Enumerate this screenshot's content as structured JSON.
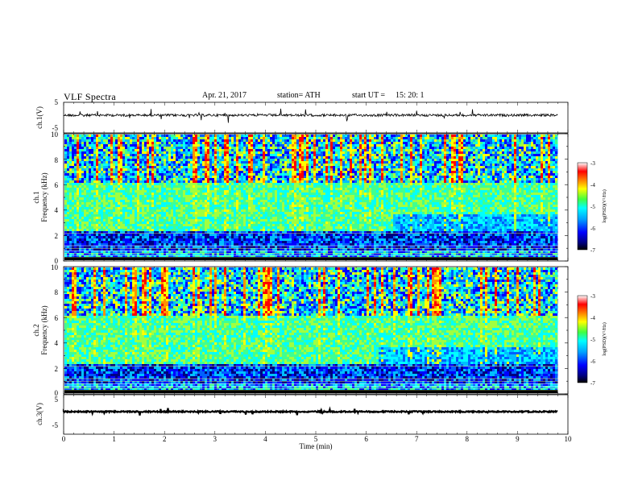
{
  "header": {
    "title": "VLF  Spectra",
    "date": "Apr. 21, 2017",
    "station": "station= ATH",
    "start_label": "start  UT  =",
    "start_time": "15: 20: 1"
  },
  "chart_data": [
    {
      "type": "line",
      "title": "",
      "ylabel": "ch.1(V)",
      "xlim": [
        0,
        10
      ],
      "ylim": [
        -5,
        5
      ],
      "yticks": [
        5,
        -5
      ],
      "description_level_V": 0,
      "series": [
        {
          "x": [
            0,
            9.8
          ],
          "y": [
            0,
            0
          ]
        }
      ]
    },
    {
      "type": "heatmap",
      "ylabel": "ch.1\nFrequency  (kHz)",
      "xlim": [
        0,
        10
      ],
      "ylim": [
        0,
        10
      ],
      "yticks": [
        0,
        2,
        4,
        6,
        8,
        10
      ],
      "colorbar": {
        "label": "log(PSD)(V²/Hz)",
        "range": [
          -7,
          -3
        ],
        "ticks": [
          -3,
          -4,
          -5,
          -6,
          -7
        ]
      },
      "x_end_data": 9.8
    },
    {
      "type": "heatmap",
      "ylabel": "ch.2\nFrequency  (kHz)",
      "xlim": [
        0,
        10
      ],
      "ylim": [
        0,
        10
      ],
      "yticks": [
        0,
        2,
        4,
        6,
        8,
        10
      ],
      "colorbar": {
        "label": "log(PSD)(V²/Hz)",
        "range": [
          -7,
          -3
        ],
        "ticks": [
          -3,
          -4,
          -5,
          -6,
          -7
        ]
      },
      "x_end_data": 9.8
    },
    {
      "type": "line",
      "ylabel": "ch.3(V)",
      "xlim": [
        0,
        10
      ],
      "ylim": [
        -5,
        5
      ],
      "yticks": [
        5,
        -5
      ],
      "series": [
        {
          "x": [
            0,
            9.8
          ],
          "y": [
            -0.3,
            -0.3
          ]
        }
      ]
    }
  ],
  "xaxis": {
    "label": "Time  (min)",
    "ticks": [
      "0",
      "1",
      "2",
      "3",
      "4",
      "5",
      "6",
      "7",
      "8",
      "9",
      "10"
    ]
  },
  "labels": {
    "ch1_volts": "ch.1(V)",
    "ch1_freq_a": "ch.1",
    "ch1_freq_b": "Frequency  (kHz)",
    "ch2_freq_a": "ch.2",
    "ch2_freq_b": "Frequency  (kHz)",
    "ch3_volts": "ch.3(V)",
    "cb_label": "log(PSD)(V²/Hz)",
    "y5": "5",
    "yneg5": "-5",
    "f0": "0",
    "f2": "2",
    "f4": "4",
    "f6": "6",
    "f8": "8",
    "f10": "10",
    "cb3": "-3",
    "cb4": "-4",
    "cb5": "-5",
    "cb6": "-6",
    "cb7": "-7"
  },
  "colors": {
    "jet": [
      "#00007f",
      "#0000ff",
      "#007fff",
      "#00ffff",
      "#7fff7f",
      "#ffff00",
      "#ff7f00",
      "#ff0000",
      "#7f0000"
    ]
  }
}
